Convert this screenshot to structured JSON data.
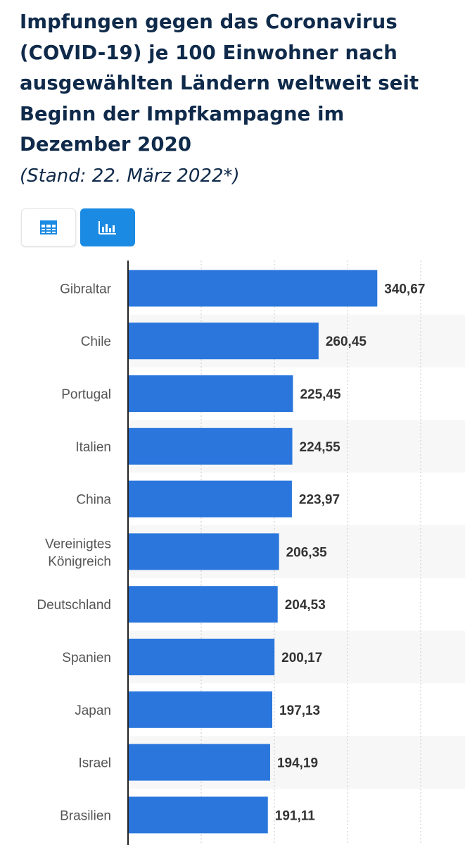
{
  "header": {
    "title": "Impfungen gegen das Coronavirus (COVID-19) je 100 Einwohner nach ausgewählten Ländern weltweit seit Beginn der Impfkampagne im Dezember 2020",
    "subtitle": "(Stand: 22. März 2022*)"
  },
  "view_toggle": {
    "table_icon": "table-icon",
    "chart_icon": "bar-chart-icon",
    "active": "chart"
  },
  "colors": {
    "bar": "#2a76dd",
    "active_button": "#1b8ae2",
    "title": "#0f2a4a",
    "label": "#555555",
    "value": "#333333",
    "band": "#f7f7f7",
    "grid": "#c8c8c8"
  },
  "chart_data": {
    "type": "bar",
    "orientation": "horizontal",
    "categories": [
      "Gibraltar",
      "Chile",
      "Portugal",
      "Italien",
      "China",
      "Vereinigtes Königreich",
      "Deutschland",
      "Spanien",
      "Japan",
      "Israel",
      "Brasilien"
    ],
    "values": [
      340.67,
      260.45,
      225.45,
      224.55,
      223.97,
      206.35,
      204.53,
      200.17,
      197.13,
      194.19,
      191.11
    ],
    "value_labels": [
      "340,67",
      "260,45",
      "225,45",
      "224,55",
      "223,97",
      "206,35",
      "204,53",
      "200,17",
      "197,13",
      "194,19",
      "191,11"
    ],
    "xlim": [
      0,
      400
    ],
    "grid": true,
    "legend": "none"
  }
}
